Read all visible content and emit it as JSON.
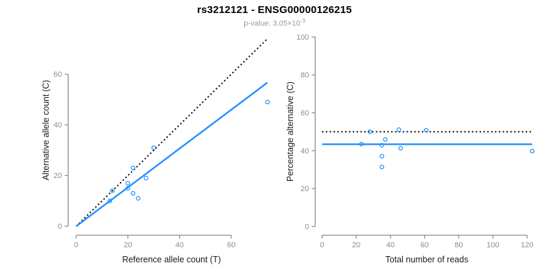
{
  "header": {
    "title": "rs3212121 - ENSG00000126215",
    "subtitle_prefix": "p-value: 3.05×10",
    "subtitle_exponent": "-3"
  },
  "colors": {
    "accent_blue": "#1E90FF",
    "axis_gray": "#858585",
    "tick_label_gray": "#8c8c8c",
    "axis_title_black": "#1a1a1a",
    "identity_line_black": "#000000"
  },
  "chart_data": [
    {
      "type": "scatter",
      "panel": "left",
      "xlabel": "Reference allele count (T)",
      "ylabel": "Alternative allele count (C)",
      "x_ticks": [
        0,
        20,
        40,
        60
      ],
      "y_ticks": [
        0,
        20,
        40,
        60
      ],
      "xlim": [
        0,
        74
      ],
      "ylim": [
        0,
        74
      ],
      "points": [
        [
          13,
          10
        ],
        [
          14,
          14
        ],
        [
          20,
          15
        ],
        [
          20,
          17
        ],
        [
          22,
          13
        ],
        [
          22,
          23
        ],
        [
          24,
          11
        ],
        [
          27,
          19
        ],
        [
          30,
          31
        ],
        [
          74,
          49
        ]
      ],
      "lines": [
        {
          "name": "identity-line",
          "style": "dotted",
          "color": "#000000",
          "x1": 0,
          "y1": 0,
          "x2": 74,
          "y2": 74
        },
        {
          "name": "fit-line",
          "style": "solid",
          "color": "#1E90FF",
          "x1": 0,
          "y1": 0,
          "x2": 74,
          "y2": 56.7
        }
      ]
    },
    {
      "type": "scatter",
      "panel": "right",
      "xlabel": "Total number of reads",
      "ylabel": "Percentage alternative (C)",
      "x_ticks": [
        0,
        20,
        40,
        60,
        80,
        100,
        120
      ],
      "y_ticks": [
        0,
        20,
        40,
        60,
        80,
        100
      ],
      "xlim": [
        0,
        123
      ],
      "ylim": [
        0,
        100
      ],
      "points": [
        [
          23,
          43.5
        ],
        [
          28,
          50.0
        ],
        [
          35,
          31.4
        ],
        [
          35,
          37.1
        ],
        [
          35,
          42.9
        ],
        [
          37,
          45.9
        ],
        [
          45,
          51.1
        ],
        [
          46,
          41.3
        ],
        [
          61,
          50.8
        ],
        [
          123,
          39.8
        ]
      ],
      "lines": [
        {
          "name": "expected-50pct-line",
          "style": "dotted",
          "color": "#000000",
          "x1": 0,
          "y1": 50,
          "x2": 123,
          "y2": 50
        },
        {
          "name": "mean-percentage-line",
          "style": "solid",
          "color": "#1E90FF",
          "x1": 0,
          "y1": 43.4,
          "x2": 123,
          "y2": 43.4
        }
      ]
    }
  ]
}
